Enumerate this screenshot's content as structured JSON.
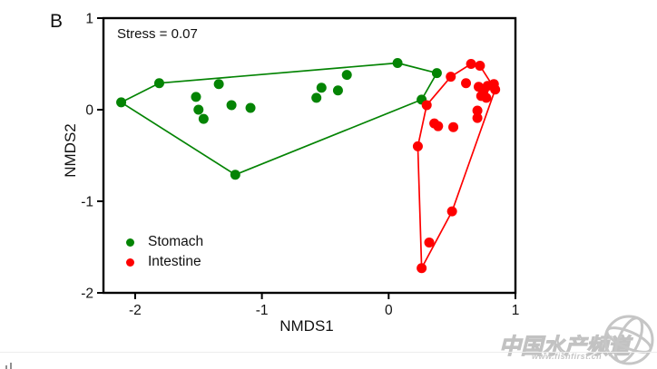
{
  "panel_label": "B",
  "annotation": "Stress = 0.07",
  "axes": {
    "xlabel": "NMDS1",
    "ylabel": "NMDS2",
    "xlim": [
      -2.25,
      1
    ],
    "ylim": [
      -2,
      1
    ],
    "x_ticks": [
      -2,
      -1,
      0,
      1
    ],
    "y_ticks": [
      1,
      0,
      -1,
      -2
    ]
  },
  "legend": {
    "items": [
      {
        "label": "Stomach",
        "color": "#048404"
      },
      {
        "label": "Intestine",
        "color": "#fe0000"
      }
    ]
  },
  "chart_data": {
    "type": "scatter",
    "title": "",
    "xlabel": "NMDS1",
    "ylabel": "NMDS2",
    "xlim": [
      -2.25,
      1
    ],
    "ylim": [
      -2,
      1
    ],
    "grid": false,
    "annotation": "Stress = 0.07",
    "legend_position": "lower-left",
    "series": [
      {
        "name": "Stomach",
        "color": "#048404",
        "marker": "circle",
        "points": [
          [
            -2.11,
            0.08
          ],
          [
            -1.81,
            0.29
          ],
          [
            -1.52,
            0.14
          ],
          [
            -1.5,
            0.0
          ],
          [
            -1.46,
            -0.1
          ],
          [
            -1.34,
            0.28
          ],
          [
            -1.24,
            0.05
          ],
          [
            -1.21,
            -0.71
          ],
          [
            -1.09,
            0.02
          ],
          [
            -0.57,
            0.13
          ],
          [
            -0.53,
            0.24
          ],
          [
            -0.4,
            0.21
          ],
          [
            -0.33,
            0.38
          ],
          [
            0.07,
            0.51
          ],
          [
            0.26,
            0.11
          ],
          [
            0.38,
            0.4
          ]
        ],
        "hull": [
          [
            -2.11,
            0.08
          ],
          [
            -1.81,
            0.29
          ],
          [
            0.07,
            0.51
          ],
          [
            0.38,
            0.4
          ],
          [
            0.26,
            0.11
          ],
          [
            -1.21,
            -0.71
          ]
        ]
      },
      {
        "name": "Intestine",
        "color": "#fe0000",
        "marker": "circle",
        "points": [
          [
            0.3,
            0.05
          ],
          [
            0.49,
            0.36
          ],
          [
            0.65,
            0.5
          ],
          [
            0.72,
            0.48
          ],
          [
            0.61,
            0.29
          ],
          [
            0.71,
            0.25
          ],
          [
            0.75,
            0.21
          ],
          [
            0.78,
            0.26
          ],
          [
            0.83,
            0.28
          ],
          [
            0.84,
            0.22
          ],
          [
            0.73,
            0.15
          ],
          [
            0.77,
            0.13
          ],
          [
            0.7,
            -0.01
          ],
          [
            0.7,
            -0.09
          ],
          [
            0.36,
            -0.15
          ],
          [
            0.39,
            -0.18
          ],
          [
            0.51,
            -0.19
          ],
          [
            0.23,
            -0.4
          ],
          [
            0.5,
            -1.11
          ],
          [
            0.32,
            -1.45
          ],
          [
            0.26,
            -1.73
          ]
        ],
        "hull": [
          [
            0.3,
            0.05
          ],
          [
            0.49,
            0.36
          ],
          [
            0.65,
            0.5
          ],
          [
            0.72,
            0.48
          ],
          [
            0.84,
            0.22
          ],
          [
            0.5,
            -1.11
          ],
          [
            0.26,
            -1.73
          ],
          [
            0.23,
            -0.4
          ]
        ]
      }
    ]
  },
  "watermark": {
    "text": "中国水产频道",
    "subtext": "www.fishfirst.cn"
  }
}
